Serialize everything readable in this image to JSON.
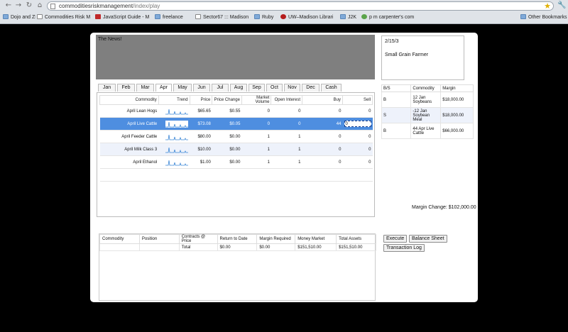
{
  "browser": {
    "url_host": "commoditiesriskmanagement",
    "url_path": "/index/play",
    "bookmarks": [
      {
        "label": "Dojo and ZF",
        "icon": "folder"
      },
      {
        "label": "Commodities Risk M",
        "icon": "page"
      },
      {
        "label": "JavaScript Guide - M",
        "icon": "red"
      },
      {
        "label": "freelance",
        "icon": "folder"
      },
      {
        "label": "Sector67 ::: Madison",
        "icon": "page"
      },
      {
        "label": "Ruby",
        "icon": "folder"
      },
      {
        "label": "UW–Madison Librari",
        "icon": "uw"
      },
      {
        "label": "J2K",
        "icon": "folder"
      },
      {
        "label": "p m carpenter's com",
        "icon": "green"
      }
    ],
    "other_bookmarks": "Other Bookmarks"
  },
  "news": {
    "title": "The News!"
  },
  "info": {
    "date": "2/15/3",
    "role": "Small Grain Farmer"
  },
  "months": [
    "Jan",
    "Feb",
    "Mar",
    "Apr",
    "May",
    "Jun",
    "Jul",
    "Aug",
    "Sep",
    "Oct",
    "Nov",
    "Dec",
    "Cash"
  ],
  "active_month": "Apr",
  "market": {
    "headers": [
      "Commodity",
      "Trend",
      "Price",
      "Price Change",
      "Market Volume",
      "Open Interest",
      "Buy",
      "Sell"
    ],
    "rows": [
      {
        "commodity": "April Lean Hogs",
        "price": "$65.65",
        "change": "$0.55",
        "volume": "0",
        "open_interest": "0",
        "buy": "0",
        "sell": "0"
      },
      {
        "commodity": "April Live Cattle",
        "price": "$73.08",
        "change": "$0.05",
        "volume": "0",
        "open_interest": "0",
        "buy": "44",
        "sell": "0",
        "selected": true
      },
      {
        "commodity": "April Feeder Cattle",
        "price": "$80.00",
        "change": "$0.00",
        "volume": "1",
        "open_interest": "1",
        "buy": "0",
        "sell": "0"
      },
      {
        "commodity": "April Milk Class 3",
        "price": "$10.00",
        "change": "$0.00",
        "volume": "1",
        "open_interest": "1",
        "buy": "0",
        "sell": "0"
      },
      {
        "commodity": "April Ethanol",
        "price": "$1.00",
        "change": "$0.00",
        "volume": "1",
        "open_interest": "1",
        "buy": "0",
        "sell": "0"
      }
    ]
  },
  "orders": {
    "headers": [
      "B/S",
      "Commodity",
      "Margin"
    ],
    "rows": [
      {
        "bs": "B",
        "commodity": "12 Jan Soybeans",
        "margin": "$18,000.00"
      },
      {
        "bs": "S",
        "commodity": "-12 Jan Soybean Meal",
        "margin": "$18,000.00"
      },
      {
        "bs": "B",
        "commodity": "44 Apr Live Cattle",
        "margin": "$66,000.00"
      }
    ],
    "margin_change": "Margin Change: $102,000.00"
  },
  "portfolio": {
    "headers": [
      "Commodity",
      "Position",
      "Contracts @ Price",
      "Return to Date",
      "Margin Required",
      "Money Market",
      "Total Assets"
    ],
    "total_row": [
      "",
      "",
      "Total",
      "$0.00",
      "$0.00",
      "$151,510.00",
      "$151,510.00"
    ]
  },
  "buttons": {
    "execute": "Execute",
    "balance_sheet": "Balance Sheet",
    "transaction_log": "Transaction Log"
  }
}
